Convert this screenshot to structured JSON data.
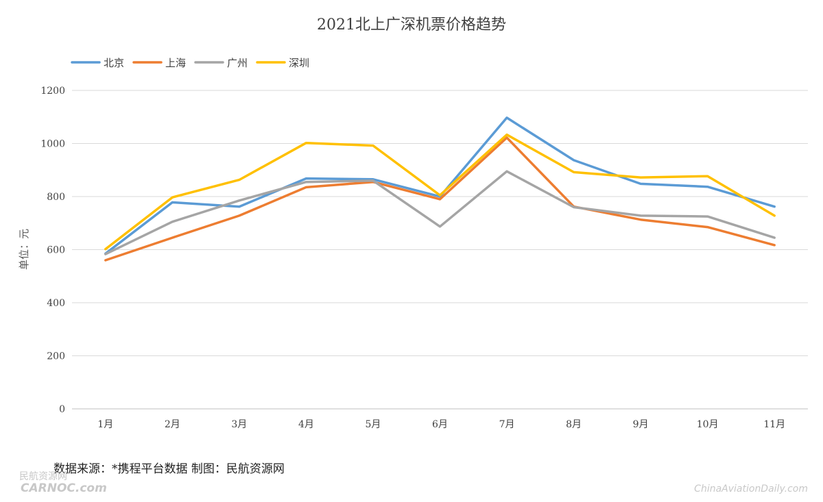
{
  "chart_data": {
    "type": "line",
    "title": "2021北上广深机票价格趋势",
    "ylabel": "单位：元",
    "xlabel": "",
    "categories": [
      "1月",
      "2月",
      "3月",
      "4月",
      "5月",
      "6月",
      "7月",
      "8月",
      "9月",
      "10月",
      "11月"
    ],
    "ylim": [
      0,
      1200
    ],
    "yticks": [
      0,
      200,
      400,
      600,
      800,
      1000,
      1200
    ],
    "grid": true,
    "legend_position": "top-left",
    "series": [
      {
        "name": "北京",
        "color": "#5B9BD5",
        "values": [
          585,
          778,
          762,
          868,
          865,
          800,
          1097,
          937,
          848,
          837,
          762
        ]
      },
      {
        "name": "上海",
        "color": "#ED7D31",
        "values": [
          560,
          645,
          728,
          835,
          855,
          790,
          1022,
          762,
          713,
          685,
          617
        ]
      },
      {
        "name": "广州",
        "color": "#A5A5A5",
        "values": [
          583,
          705,
          785,
          855,
          860,
          687,
          895,
          760,
          728,
          725,
          645
        ]
      },
      {
        "name": "深圳",
        "color": "#FFC000",
        "values": [
          602,
          797,
          863,
          1002,
          992,
          805,
          1033,
          892,
          872,
          877,
          728
        ]
      }
    ]
  },
  "footer": {
    "source": "数据来源：*携程平台数据 制图：民航资源网"
  },
  "watermarks": {
    "left_top": "民航资源网",
    "left_bottom": "CARNOC.com",
    "right": "ChinaAviationDaily.com"
  }
}
